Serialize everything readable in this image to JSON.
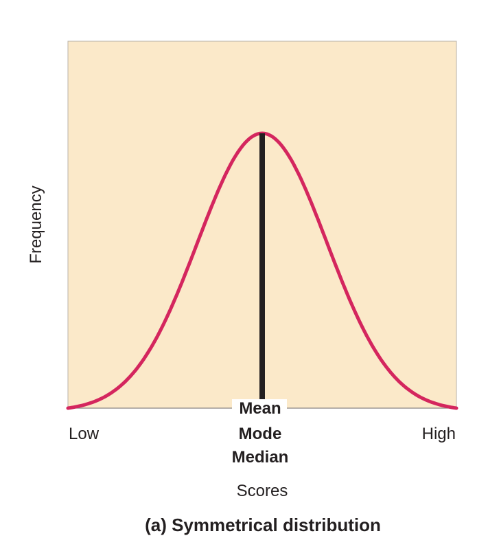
{
  "chart_data": {
    "type": "line",
    "title": "",
    "xlabel": "Scores",
    "ylabel": "Frequency",
    "x_tick_labels": {
      "left": "Low",
      "center": [
        "Mean",
        "Mode",
        "Median"
      ],
      "right": "High"
    },
    "series": [
      {
        "curve": "normal",
        "x": [
          -3.0,
          -2.5,
          -2.0,
          -1.5,
          -1.0,
          -0.5,
          0.0,
          0.5,
          1.0,
          1.5,
          2.0,
          2.5,
          3.0
        ],
        "y": [
          0.0,
          0.05,
          0.13,
          0.32,
          0.6,
          0.88,
          1.0,
          0.88,
          0.6,
          0.32,
          0.13,
          0.05,
          0.0
        ]
      }
    ],
    "marker_line": {
      "x": 0.0,
      "label": "Mean Mode Median"
    },
    "xlim": [
      -3.0,
      3.0
    ],
    "ylim": [
      0,
      1.0
    ],
    "grid": false,
    "colors": {
      "plot_background": "#fbe9c9",
      "curve": "#d4265e",
      "marker_line": "#231f20",
      "axis": "#8a8580"
    }
  },
  "caption": "(a) Symmetrical distribution"
}
